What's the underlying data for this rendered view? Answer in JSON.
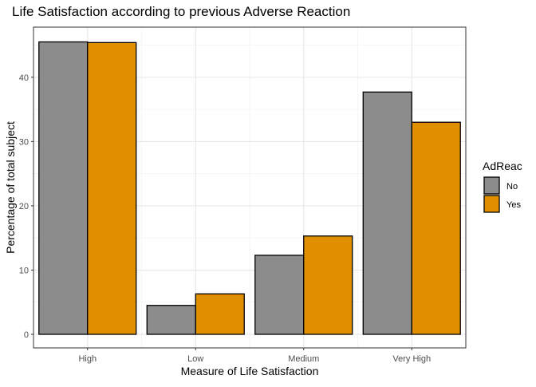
{
  "chart_data": {
    "type": "bar",
    "title": "Life Satisfaction according to previous Adverse Reaction",
    "xlabel": "Measure of Life Satisfaction",
    "ylabel": "Percentage of total subject",
    "categories": [
      "High",
      "Low",
      "Medium",
      "Very High"
    ],
    "series": [
      {
        "name": "No",
        "values": [
          45.5,
          4.5,
          12.3,
          37.7
        ],
        "color": "#8c8c8c"
      },
      {
        "name": "Yes",
        "values": [
          45.4,
          6.3,
          15.3,
          33.0
        ],
        "color": "#e08f00"
      }
    ],
    "ylim": [
      0,
      47.8
    ],
    "yticks": [
      0,
      10,
      20,
      30,
      40
    ],
    "grid": true,
    "legend": {
      "title": "AdReac",
      "position": "right"
    }
  }
}
